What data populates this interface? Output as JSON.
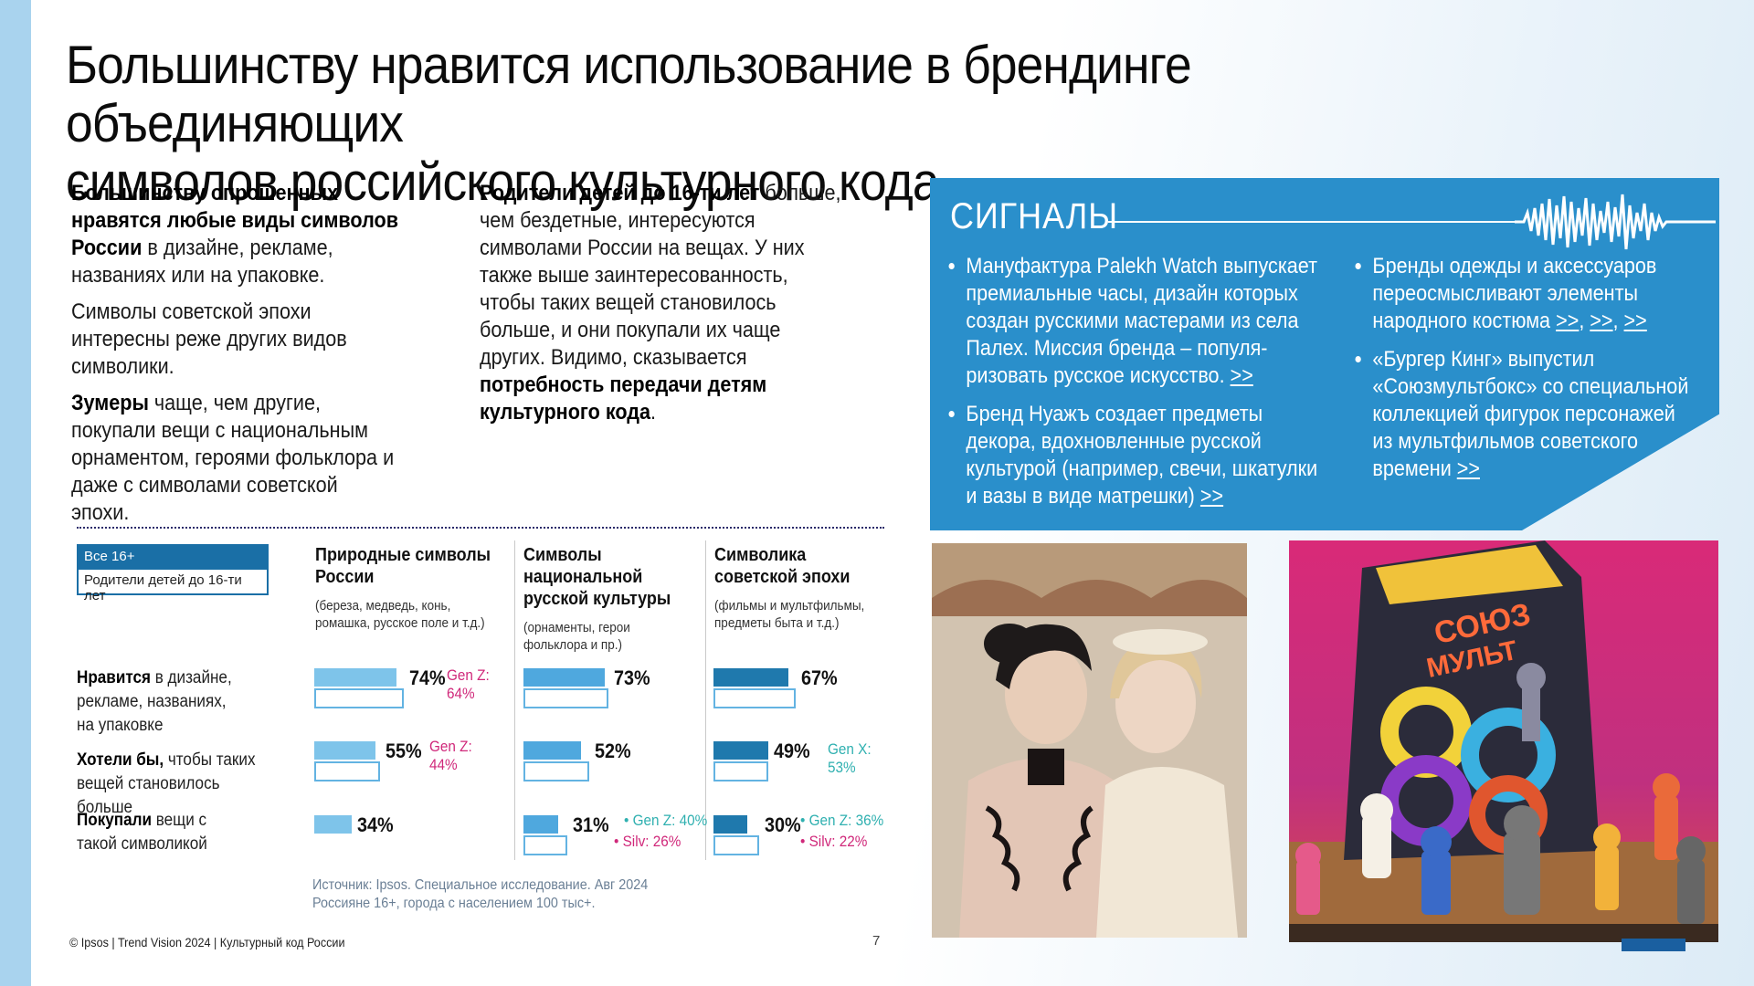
{
  "title_line1": "Большинству нравится использование в брендинге объединяющих",
  "title_line2": "символов российского культурного кода",
  "intro_left": {
    "p1_bold": "Большинству опрошенных нравятся любые виды символов России",
    "p1_rest": " в дизайне, рекламе, названиях или на упаковке.",
    "p2": "Символы советской эпохи интересны реже других видов символики.",
    "p3_bold": "Зумеры",
    "p3_rest": " чаще, чем другие, покупали вещи с национальным орнаментом, героями фольклора и даже с символами советской эпохи."
  },
  "intro_right": {
    "bold1": "Родители детей до 16-ти лет",
    "rest1": " больше, чем бездетные, интересуются символами России на вещах. У них также выше заинтересованность, чтобы таких вещей становилось больше, и они покупали их чаще других. Видимо, сказывается ",
    "bold2": "потребность передачи детям культурного кода",
    "end": "."
  },
  "signals": {
    "title": "СИГНАЛЫ",
    "left_items": [
      {
        "text": "Мануфактура Palekh Watch выпускает премиальные часы, дизайн которых создан русскими мастерами из села Палех. Миссия бренда – популя-ризовать русское искусство.",
        "link": ">>"
      },
      {
        "text": "Бренд Нуажъ создает предметы декора, вдохновленные русской культурой (например, свечи, шкатулки и вазы в виде матрешки)",
        "link": ">>"
      }
    ],
    "right_items": [
      {
        "text": "Бренды одежды и аксессуаров переосмысливают элементы народного костюма",
        "link": ">>",
        "link2": ">>",
        "link3": ">>"
      },
      {
        "text": "«Бургер Кинг» выпустил «Союзмультбокс» со специальной коллекцией фигурок персонажей из мультфильмов советского времени",
        "link": ">>"
      }
    ]
  },
  "legend": {
    "all": "Все 16+",
    "parents": "Родители детей до 16-ти лет"
  },
  "colors": {
    "bar_light": "#7ec4ea",
    "bar_mid": "#4fa8de",
    "bar_dark": "#1f79ad",
    "outline": "#63b3e2",
    "pink": "#d0287a",
    "teal": "#2fb0b0",
    "signals_bg": "#2a8fcb"
  },
  "chart_data": {
    "type": "bar",
    "columns": [
      {
        "title": "Природные символы России",
        "subtitle": "(береза, медведь, конь, ромашка, русское поле и т.д.)"
      },
      {
        "title": "Символы национальной русской культуры",
        "subtitle": "(орнаменты, герои фольклора и пр.)"
      },
      {
        "title": "Символика советской эпохи",
        "subtitle": "(фильмы и мультфильмы, предметы быта и т.д.)"
      }
    ],
    "rows": [
      {
        "label_bold": "Нравится",
        "label_rest": " в дизайне, рекламе, названиях, на упаковке"
      },
      {
        "label_bold": "Хотели бы,",
        "label_rest": " чтобы таких вещей становилось больше"
      },
      {
        "label_bold": "Покупали",
        "label_rest": " вещи с такой символикой"
      }
    ],
    "series": [
      {
        "name": "Все 16+",
        "values": [
          [
            74,
            55,
            34
          ],
          [
            73,
            52,
            31
          ],
          [
            67,
            49,
            30
          ]
        ]
      }
    ],
    "value_labels": [
      [
        "74%",
        "55%",
        "34%"
      ],
      [
        "73%",
        "52%",
        "31%"
      ],
      [
        "67%",
        "49%",
        "30%"
      ]
    ],
    "notes": {
      "c0r0": "Gen Z: 64%",
      "c0r1": "Gen Z: 44%",
      "c1r2a": "• Gen Z: 40%",
      "c1r2b": "• Silv: 26%",
      "c2r1": "Gen X: 53%",
      "c2r2a": "• Gen Z: 36%",
      "c2r2b": "• Silv: 22%"
    }
  },
  "source_line1": "Источник: Ipsos. Специальное исследование. Авг 2024",
  "source_line2": "Россияне 16+, города с населением 100 тыс+.",
  "footer": "© Ipsos | Trend Vision 2024 | Культурный код России",
  "page_number": "7"
}
